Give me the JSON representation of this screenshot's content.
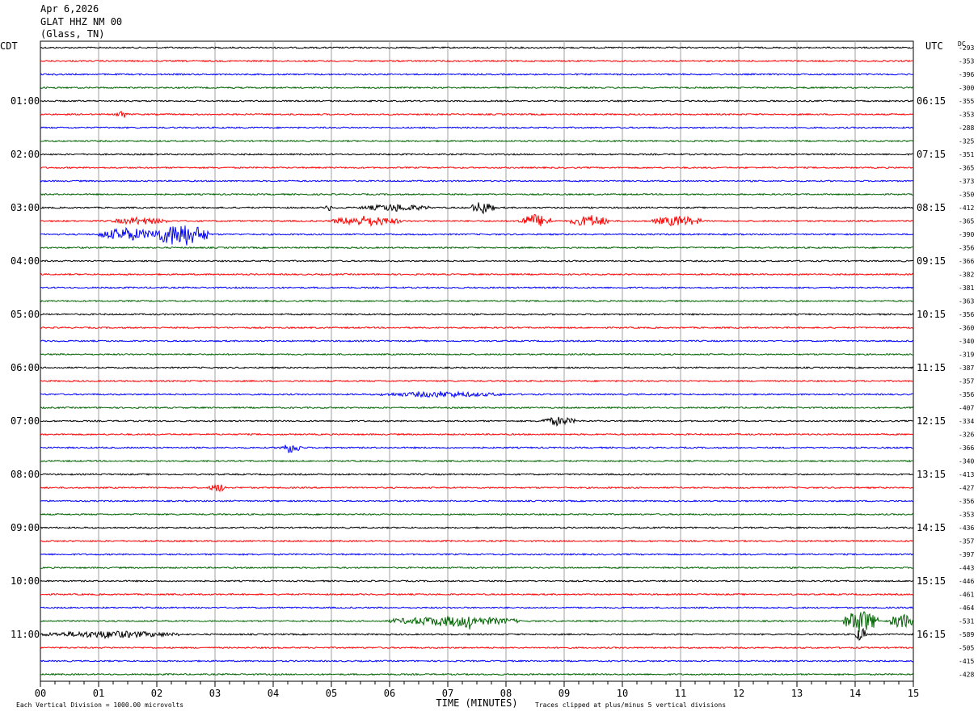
{
  "header": {
    "date": "Apr 6,2026",
    "station": "GLAT HHZ NM 00",
    "location": "(Glass, TN)"
  },
  "chart_data": {
    "type": "line",
    "title": "",
    "left_axis_label": "CDT",
    "right_axis_label": "UTC",
    "dc_label": "DC",
    "xlabel": "TIME (MINUTES)",
    "xlim": [
      0,
      15
    ],
    "x_ticks": [
      "00",
      "01",
      "02",
      "03",
      "04",
      "05",
      "06",
      "07",
      "08",
      "09",
      "10",
      "11",
      "12",
      "13",
      "14",
      "15"
    ],
    "grid": true,
    "footer_left": "Each Vertical Division = 1000.00 microvolts",
    "footer_right": "Traces clipped at plus/minus 5 vertical divisions",
    "trace_colors": [
      "#000000",
      "#ff0000",
      "#0000ff",
      "#006400"
    ],
    "left_hour_labels": [
      "01:00",
      "02:00",
      "03:00",
      "04:00",
      "05:00",
      "06:00",
      "07:00",
      "08:00",
      "09:00",
      "10:00",
      "11:00"
    ],
    "right_hour_labels": [
      "06:15",
      "07:15",
      "08:15",
      "09:15",
      "10:15",
      "11:15",
      "12:15",
      "13:15",
      "14:15",
      "15:15",
      "16:15"
    ],
    "dc_offsets": [
      293,
      353,
      396,
      300,
      355,
      353,
      288,
      325,
      351,
      365,
      373,
      350,
      412,
      365,
      390,
      356,
      366,
      382,
      381,
      363,
      356,
      360,
      340,
      319,
      387,
      357,
      356,
      407,
      334,
      326,
      366,
      340,
      413,
      427,
      356,
      353,
      436,
      357,
      397,
      443,
      446,
      461,
      464,
      531,
      589,
      505,
      415,
      428
    ],
    "events": [
      {
        "trace": 5,
        "start_min": 1.3,
        "end_min": 1.5,
        "amp": 6
      },
      {
        "trace": 12,
        "start_min": 4.9,
        "end_min": 5.0,
        "amp": 6
      },
      {
        "trace": 12,
        "start_min": 5.5,
        "end_min": 6.7,
        "amp": 5
      },
      {
        "trace": 12,
        "start_min": 7.4,
        "end_min": 7.8,
        "amp": 9
      },
      {
        "trace": 13,
        "start_min": 1.2,
        "end_min": 2.2,
        "amp": 5
      },
      {
        "trace": 13,
        "start_min": 5.0,
        "end_min": 6.2,
        "amp": 7
      },
      {
        "trace": 13,
        "start_min": 8.2,
        "end_min": 8.8,
        "amp": 9
      },
      {
        "trace": 13,
        "start_min": 9.1,
        "end_min": 9.8,
        "amp": 8
      },
      {
        "trace": 13,
        "start_min": 10.5,
        "end_min": 11.4,
        "amp": 7
      },
      {
        "trace": 14,
        "start_min": 1.0,
        "end_min": 2.0,
        "amp": 9
      },
      {
        "trace": 14,
        "start_min": 1.9,
        "end_min": 2.9,
        "amp": 16
      },
      {
        "trace": 26,
        "start_min": 5.8,
        "end_min": 8.0,
        "amp": 4
      },
      {
        "trace": 28,
        "start_min": 8.6,
        "end_min": 9.2,
        "amp": 6
      },
      {
        "trace": 30,
        "start_min": 4.1,
        "end_min": 4.5,
        "amp": 7
      },
      {
        "trace": 33,
        "start_min": 2.9,
        "end_min": 3.2,
        "amp": 6
      },
      {
        "trace": 43,
        "start_min": 6.0,
        "end_min": 8.2,
        "amp": 7
      },
      {
        "trace": 43,
        "start_min": 7.3,
        "end_min": 7.4,
        "amp": 18
      },
      {
        "trace": 43,
        "start_min": 13.8,
        "end_min": 14.4,
        "amp": 16
      },
      {
        "trace": 43,
        "start_min": 14.6,
        "end_min": 15.0,
        "amp": 11
      },
      {
        "trace": 44,
        "start_min": 0.0,
        "end_min": 2.4,
        "amp": 5
      },
      {
        "trace": 44,
        "start_min": 14.0,
        "end_min": 14.2,
        "amp": 10
      }
    ]
  }
}
